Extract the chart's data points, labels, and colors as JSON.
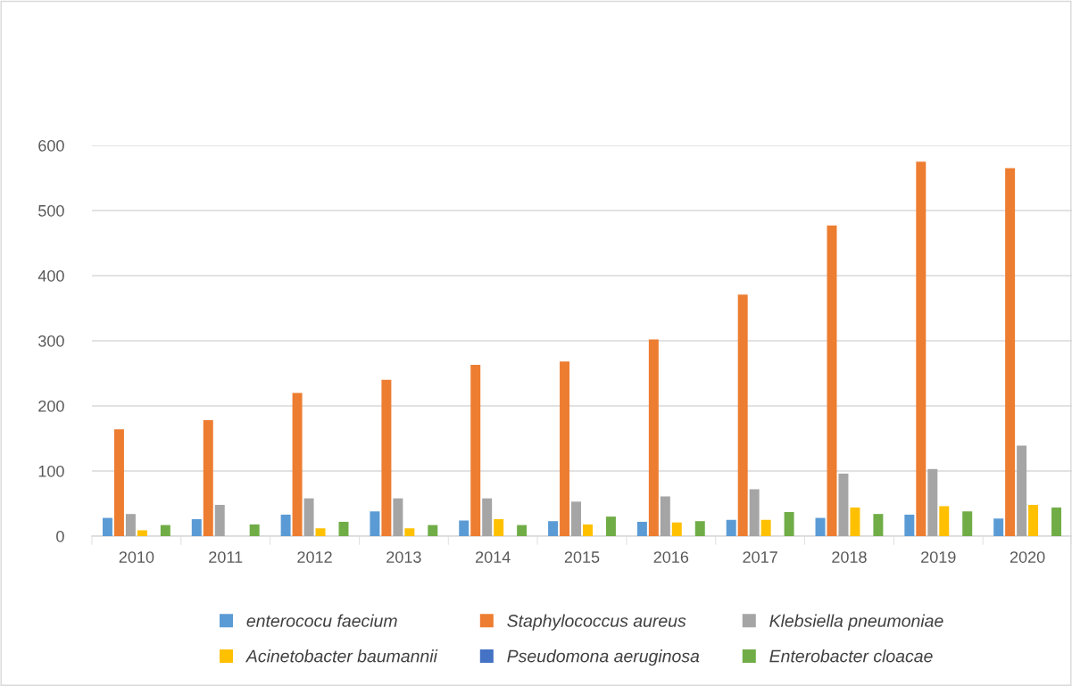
{
  "chart_data": {
    "type": "bar",
    "categories": [
      "2010",
      "2011",
      "2012",
      "2013",
      "2014",
      "2015",
      "2016",
      "2017",
      "2018",
      "2019",
      "2020"
    ],
    "series": [
      {
        "name": "enterococu faecium",
        "color": "#5b9bd5",
        "values": [
          28,
          26,
          33,
          38,
          24,
          23,
          22,
          25,
          28,
          33,
          27
        ]
      },
      {
        "name": "Staphylococcus aureus",
        "color": "#ed7d31",
        "values": [
          164,
          178,
          220,
          240,
          263,
          268,
          302,
          371,
          477,
          575,
          565
        ]
      },
      {
        "name": "Klebsiella pneumoniae",
        "color": "#a5a5a5",
        "values": [
          34,
          48,
          58,
          58,
          58,
          53,
          61,
          72,
          96,
          103,
          139
        ]
      },
      {
        "name": "Acinetobacter baumannii",
        "color": "#ffc000",
        "values": [
          9,
          null,
          12,
          12,
          26,
          18,
          21,
          25,
          44,
          46,
          48
        ]
      },
      {
        "name": "Pseudomona aeruginosa",
        "color": "#4472c4",
        "values": [
          null,
          null,
          null,
          null,
          null,
          null,
          null,
          null,
          null,
          null,
          null
        ]
      },
      {
        "name": "Enterobacter cloacae",
        "color": "#70ad47",
        "values": [
          17,
          18,
          22,
          17,
          17,
          30,
          23,
          37,
          34,
          38,
          44
        ]
      }
    ],
    "ylim": [
      0,
      600
    ],
    "yticks": [
      0,
      100,
      200,
      300,
      400,
      500,
      600
    ],
    "grid": "y",
    "legend": "bottom"
  }
}
